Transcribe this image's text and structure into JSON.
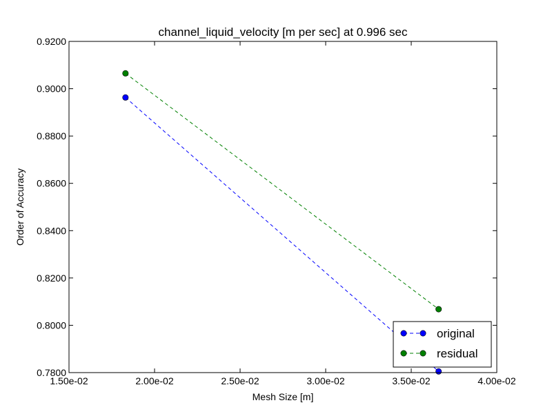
{
  "chart_data": {
    "type": "line",
    "title": "channel_liquid_velocity [m per sec] at 0.996 sec",
    "xlabel": "Mesh Size [m]",
    "ylabel": "Order of Accuracy",
    "xlim": [
      0.015,
      0.04
    ],
    "ylim": [
      0.78,
      0.92
    ],
    "xticks": [
      0.015,
      0.02,
      0.025,
      0.03,
      0.035,
      0.04
    ],
    "xtick_labels": [
      "1.50e-02",
      "2.00e-02",
      "2.50e-02",
      "3.00e-02",
      "3.50e-02",
      "4.00e-02"
    ],
    "yticks": [
      0.78,
      0.8,
      0.82,
      0.84,
      0.86,
      0.88,
      0.9,
      0.92
    ],
    "ytick_labels": [
      "0.7800",
      "0.8000",
      "0.8200",
      "0.8400",
      "0.8600",
      "0.8800",
      "0.9000",
      "0.9200"
    ],
    "grid": false,
    "legend_position": "bottom-right",
    "series": [
      {
        "name": "original",
        "color": "#0000ff",
        "marker_color": "#0000cc",
        "x": [
          0.0183,
          0.0366
        ],
        "y": [
          0.8963,
          0.7805
        ]
      },
      {
        "name": "residual",
        "color": "#008000",
        "marker_color": "#007000",
        "x": [
          0.0183,
          0.0366
        ],
        "y": [
          0.9065,
          0.8068
        ]
      }
    ]
  }
}
